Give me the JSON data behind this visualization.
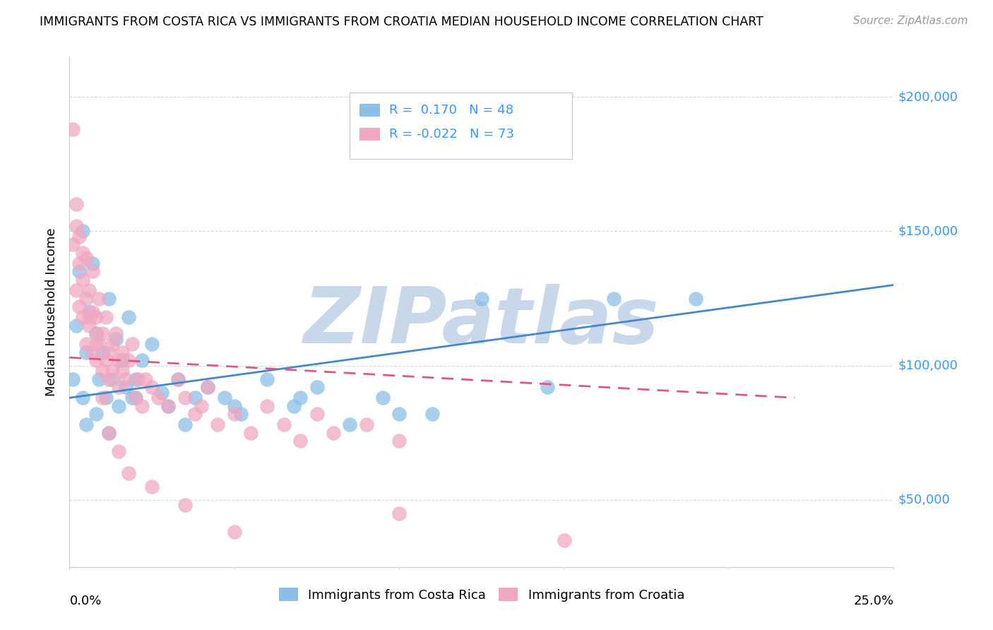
{
  "title": "IMMIGRANTS FROM COSTA RICA VS IMMIGRANTS FROM CROATIA MEDIAN HOUSEHOLD INCOME CORRELATION CHART",
  "source": "Source: ZipAtlas.com",
  "ylabel": "Median Household Income",
  "xlim": [
    0,
    0.25
  ],
  "ylim": [
    25000,
    215000
  ],
  "yticks": [
    50000,
    100000,
    150000,
    200000
  ],
  "ytick_labels": [
    "$50,000",
    "$100,000",
    "$150,000",
    "$200,000"
  ],
  "xticks": [
    0.0,
    0.05,
    0.1,
    0.15,
    0.2,
    0.25
  ],
  "series_costa_rica": {
    "name": "Immigrants from Costa Rica",
    "color": "#8bbfe8",
    "x": [
      0.001,
      0.002,
      0.003,
      0.004,
      0.004,
      0.005,
      0.006,
      0.007,
      0.008,
      0.009,
      0.01,
      0.011,
      0.012,
      0.013,
      0.014,
      0.015,
      0.016,
      0.017,
      0.018,
      0.019,
      0.02,
      0.022,
      0.025,
      0.028,
      0.03,
      0.033,
      0.038,
      0.042,
      0.047,
      0.052,
      0.06,
      0.068,
      0.075,
      0.085,
      0.095,
      0.11,
      0.125,
      0.145,
      0.165,
      0.19,
      0.005,
      0.008,
      0.012,
      0.02,
      0.035,
      0.05,
      0.07,
      0.1
    ],
    "y": [
      95000,
      115000,
      135000,
      88000,
      150000,
      105000,
      120000,
      138000,
      112000,
      95000,
      105000,
      88000,
      125000,
      95000,
      110000,
      85000,
      102000,
      92000,
      118000,
      88000,
      95000,
      102000,
      108000,
      90000,
      85000,
      95000,
      88000,
      92000,
      88000,
      82000,
      95000,
      85000,
      92000,
      78000,
      88000,
      82000,
      125000,
      92000,
      125000,
      125000,
      78000,
      82000,
      75000,
      88000,
      78000,
      85000,
      88000,
      82000
    ]
  },
  "series_croatia": {
    "name": "Immigrants from Croatia",
    "color": "#f0a8c0",
    "x": [
      0.001,
      0.001,
      0.002,
      0.002,
      0.003,
      0.003,
      0.003,
      0.004,
      0.004,
      0.005,
      0.005,
      0.005,
      0.006,
      0.006,
      0.007,
      0.007,
      0.007,
      0.008,
      0.008,
      0.008,
      0.009,
      0.009,
      0.01,
      0.01,
      0.011,
      0.011,
      0.012,
      0.012,
      0.013,
      0.013,
      0.014,
      0.015,
      0.015,
      0.016,
      0.016,
      0.017,
      0.018,
      0.019,
      0.02,
      0.021,
      0.022,
      0.023,
      0.025,
      0.027,
      0.03,
      0.033,
      0.035,
      0.038,
      0.04,
      0.042,
      0.045,
      0.05,
      0.055,
      0.06,
      0.065,
      0.07,
      0.075,
      0.08,
      0.09,
      0.1,
      0.002,
      0.004,
      0.006,
      0.008,
      0.01,
      0.012,
      0.015,
      0.018,
      0.025,
      0.035,
      0.05,
      0.1,
      0.15
    ],
    "y": [
      188000,
      145000,
      152000,
      128000,
      138000,
      122000,
      148000,
      132000,
      118000,
      125000,
      140000,
      108000,
      128000,
      115000,
      120000,
      105000,
      135000,
      112000,
      102000,
      118000,
      108000,
      125000,
      98000,
      112000,
      102000,
      118000,
      105000,
      95000,
      108000,
      98000,
      112000,
      102000,
      92000,
      98000,
      105000,
      95000,
      102000,
      108000,
      88000,
      95000,
      85000,
      95000,
      92000,
      88000,
      85000,
      95000,
      88000,
      82000,
      85000,
      92000,
      78000,
      82000,
      75000,
      85000,
      78000,
      72000,
      82000,
      75000,
      78000,
      72000,
      160000,
      142000,
      118000,
      108000,
      88000,
      75000,
      68000,
      60000,
      55000,
      48000,
      38000,
      45000,
      35000
    ]
  },
  "trend_costa_rica": {
    "x": [
      0.0,
      0.25
    ],
    "y": [
      88000,
      130000
    ],
    "color": "#4488cc",
    "linewidth": 2.0,
    "linestyle": "solid"
  },
  "trend_croatia": {
    "x": [
      0.0,
      0.22
    ],
    "y": [
      103000,
      88000
    ],
    "color": "#e05880",
    "linewidth": 2.0,
    "linestyle": "dashed"
  },
  "watermark": "ZIPatlas",
  "watermark_color": "#c8d8ea",
  "background_color": "#ffffff",
  "grid_color": "#d8d8d8",
  "legend_r1": "R =  0.170   N = 48",
  "legend_r2": "R = -0.022   N = 73",
  "legend_color1": "#8bbfe8",
  "legend_color2": "#f0a8c0",
  "text_color": "#3399ff"
}
